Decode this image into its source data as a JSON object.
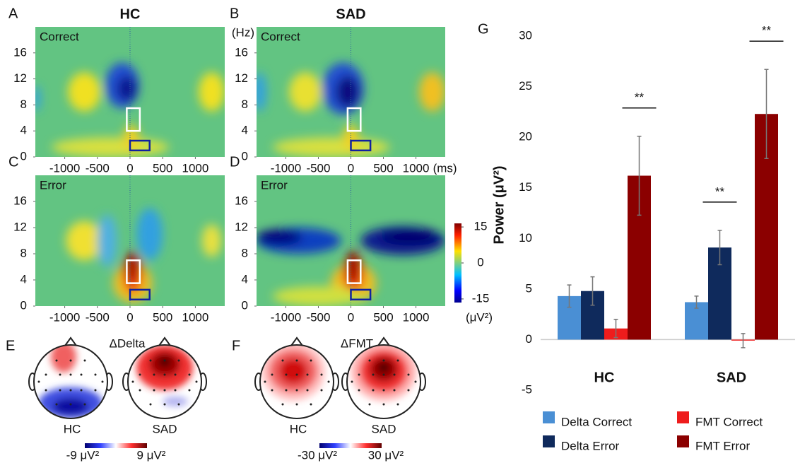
{
  "chart_data": [
    {
      "type": "heatmap",
      "panel": "A",
      "title": "HC",
      "label": "Correct",
      "xlim": [
        -1450,
        1450
      ],
      "ylim": [
        0,
        20
      ],
      "xticks": [
        -1000,
        -500,
        0,
        500,
        1000
      ],
      "yticks": [
        0,
        4,
        8,
        12,
        16
      ]
    },
    {
      "type": "heatmap",
      "panel": "B",
      "title": "SAD",
      "label": "Correct",
      "ylabel": "(Hz)",
      "xlabel": "(ms)",
      "xlim": [
        -1450,
        1450
      ],
      "ylim": [
        0,
        20
      ],
      "xticks": [
        -1000,
        -500,
        0,
        500,
        1000
      ],
      "yticks": [
        0,
        4,
        8,
        12,
        16
      ]
    },
    {
      "type": "heatmap",
      "panel": "C",
      "label": "Error",
      "xlim": [
        -1450,
        1450
      ],
      "ylim": [
        0,
        20
      ],
      "xticks": [
        -1000,
        -500,
        0,
        500,
        1000
      ],
      "yticks": [
        0,
        4,
        8,
        12,
        16
      ]
    },
    {
      "type": "heatmap",
      "panel": "D",
      "label": "Error",
      "xlim": [
        -1450,
        1450
      ],
      "ylim": [
        0,
        20
      ],
      "xticks": [
        -1000,
        -500,
        0,
        500,
        1000
      ],
      "yticks": [
        0,
        4,
        8,
        12,
        16
      ],
      "colorbar": {
        "clim": [
          -16.5,
          16.5
        ],
        "ticks": [
          15,
          0,
          -15
        ],
        "label": "(μV²)"
      }
    },
    {
      "type": "topomap",
      "panel": "E",
      "title": "ΔDelta",
      "heads": [
        "HC",
        "SAD"
      ],
      "scale": [
        "-9 μV²",
        "9 μV²"
      ]
    },
    {
      "type": "topomap",
      "panel": "F",
      "title": "ΔFMT",
      "heads": [
        "HC",
        "SAD"
      ],
      "scale": [
        "-30 μV²",
        "30 μV²"
      ]
    },
    {
      "type": "bar",
      "panel": "G",
      "ylabel": "Power (μV²)",
      "categories": [
        "HC",
        "SAD"
      ],
      "ylim": [
        -5,
        30
      ],
      "yticks": [
        -5,
        0,
        5,
        10,
        15,
        20,
        25,
        30
      ],
      "series": [
        {
          "name": "Delta Correct",
          "color": "#4a8fd4",
          "values": [
            4.3,
            3.7
          ],
          "errors": [
            1.1,
            0.6
          ]
        },
        {
          "name": "Delta Error",
          "color": "#0f2a5c",
          "values": [
            4.8,
            9.1
          ],
          "errors": [
            1.4,
            1.7
          ]
        },
        {
          "name": "FMT Correct",
          "color": "#ee1c1c",
          "values": [
            1.1,
            -0.1
          ],
          "errors": [
            0.9,
            0.7
          ]
        },
        {
          "name": "FMT Error",
          "color": "#8b0000",
          "values": [
            16.2,
            22.3
          ],
          "errors": [
            3.9,
            4.4
          ]
        }
      ],
      "significance": [
        "**",
        "**",
        "**"
      ]
    }
  ]
}
